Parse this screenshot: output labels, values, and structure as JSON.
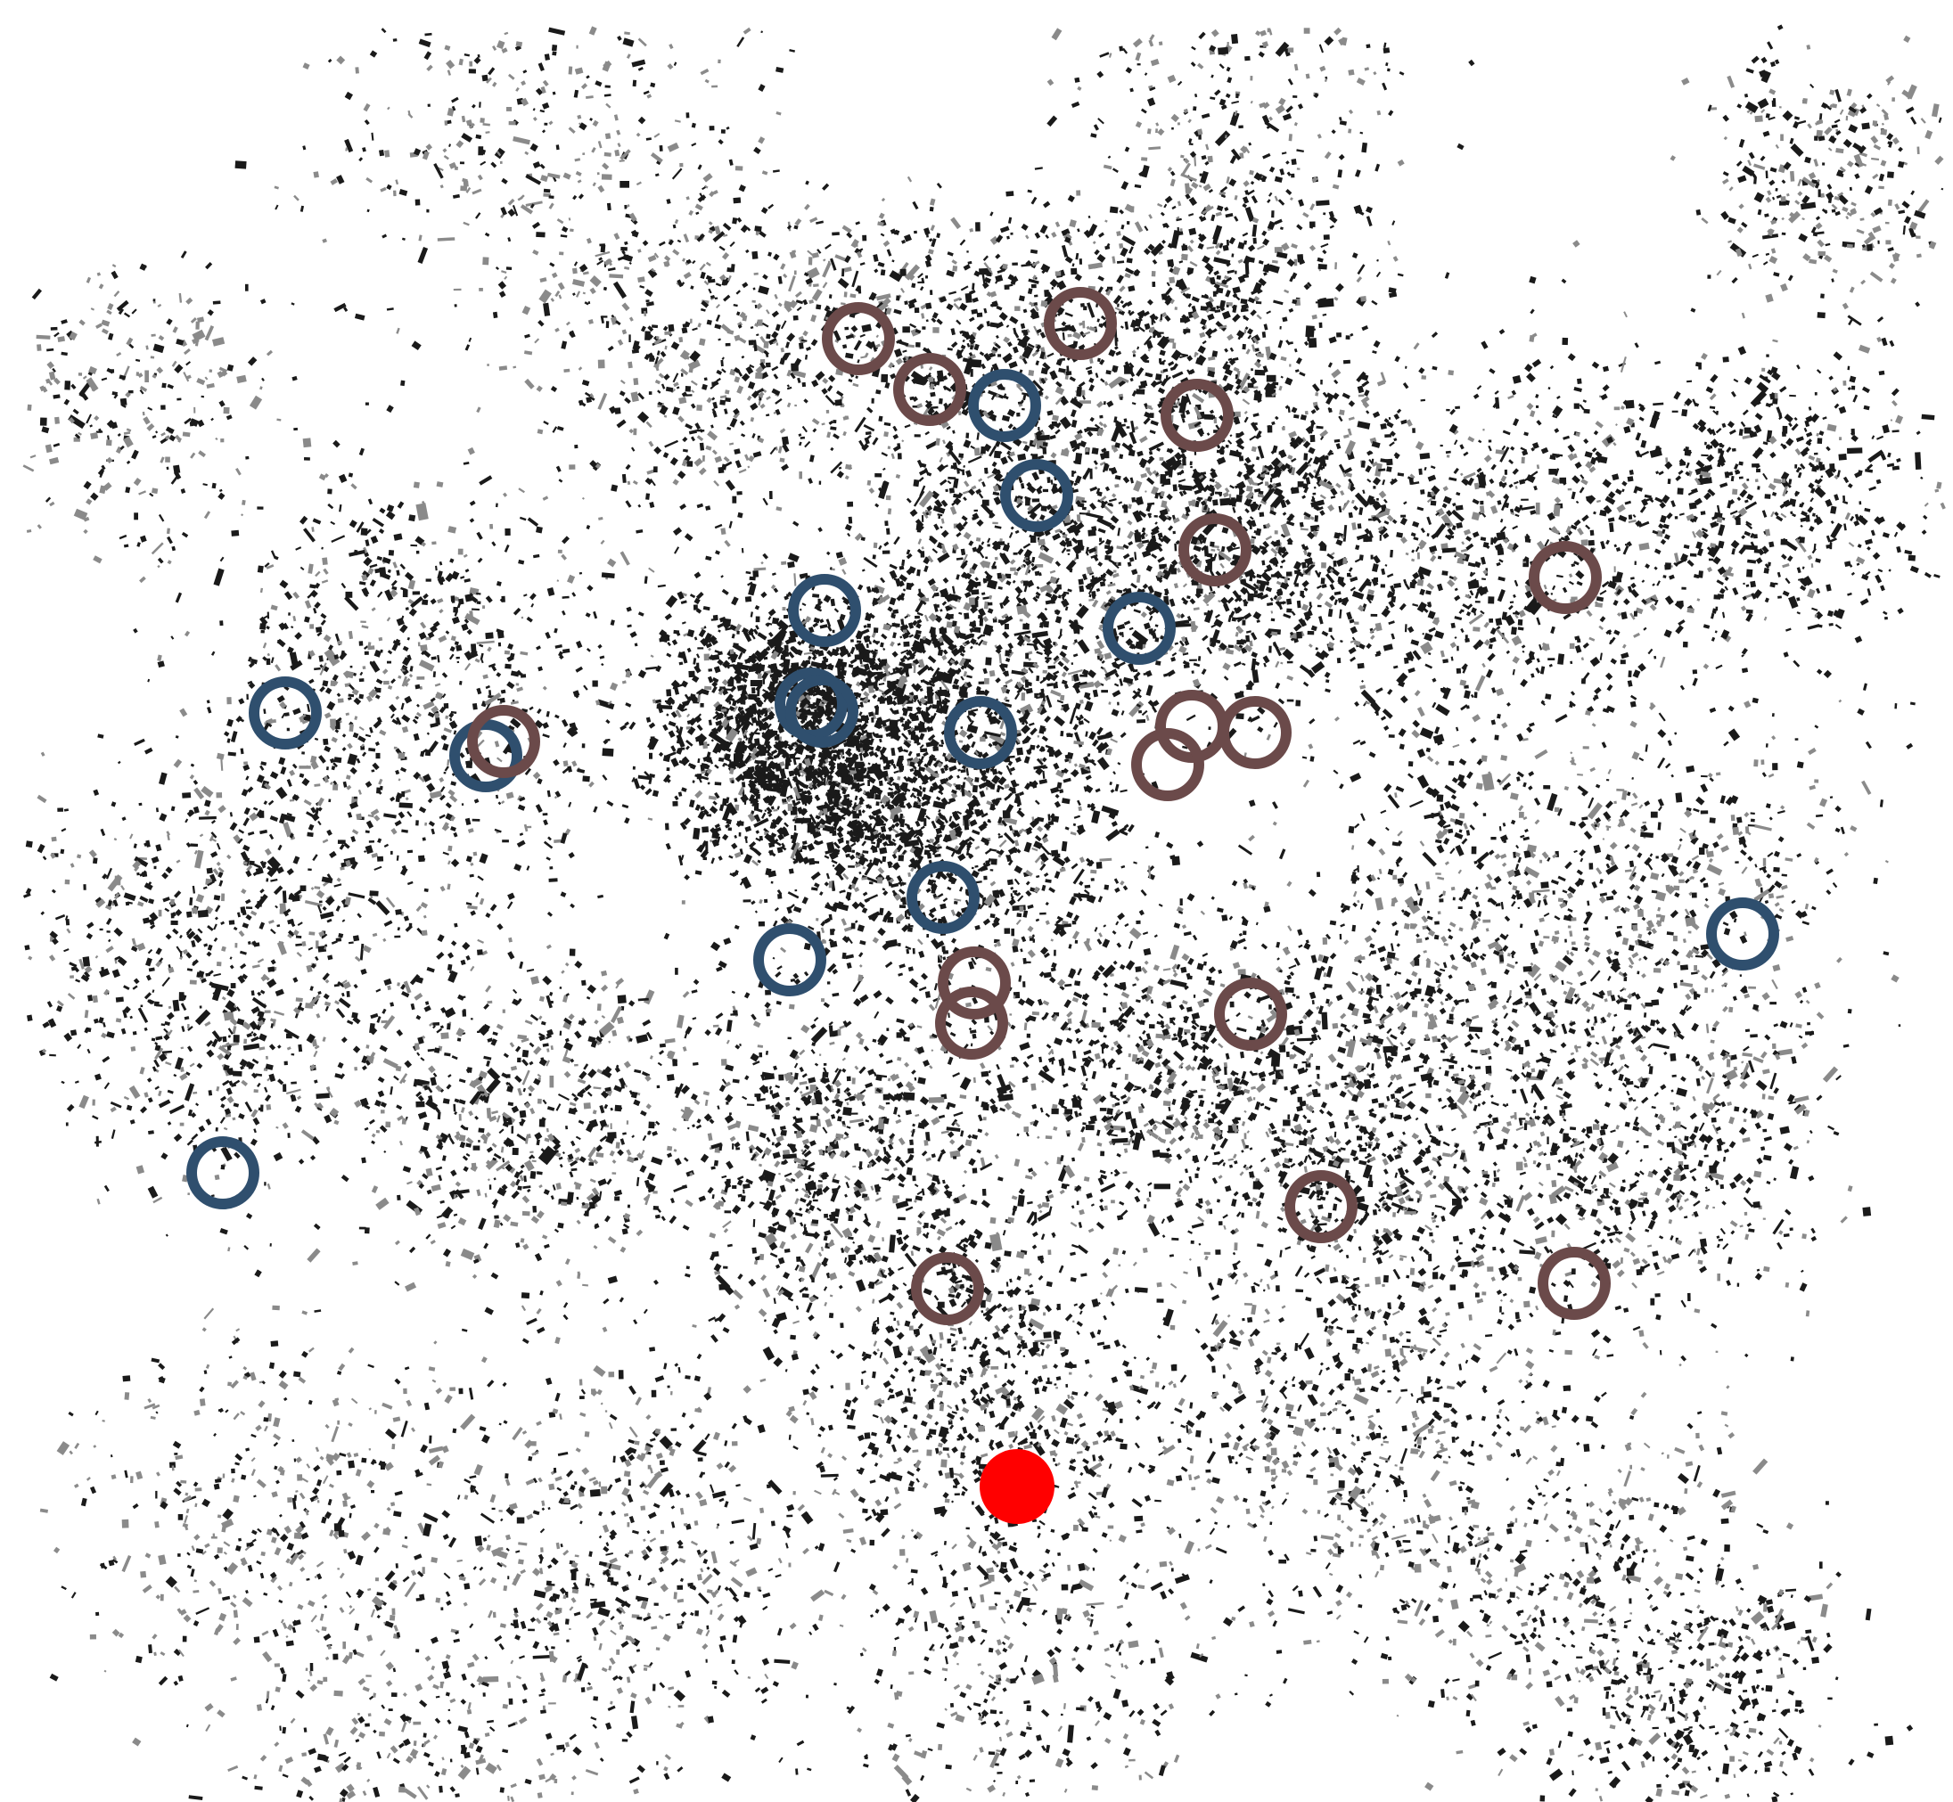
{
  "map": {
    "style": "figure-ground building footprint map",
    "colors": {
      "background": "#ffffff",
      "buildings": "#1a1a1a",
      "buildings_light": "#8a8a8a",
      "marker_blue": "#2f4f6e",
      "marker_brown": "#6b4a4a",
      "marker_red": "#ff0000"
    },
    "marker_types": [
      {
        "id": "blue",
        "shape": "ring",
        "color": "#2f4f6e",
        "count": 14
      },
      {
        "id": "brown",
        "shape": "ring",
        "color": "#6b4a4a",
        "count": 18
      },
      {
        "id": "red",
        "shape": "filled-circle",
        "color": "#ff0000",
        "count": 1
      }
    ]
  }
}
